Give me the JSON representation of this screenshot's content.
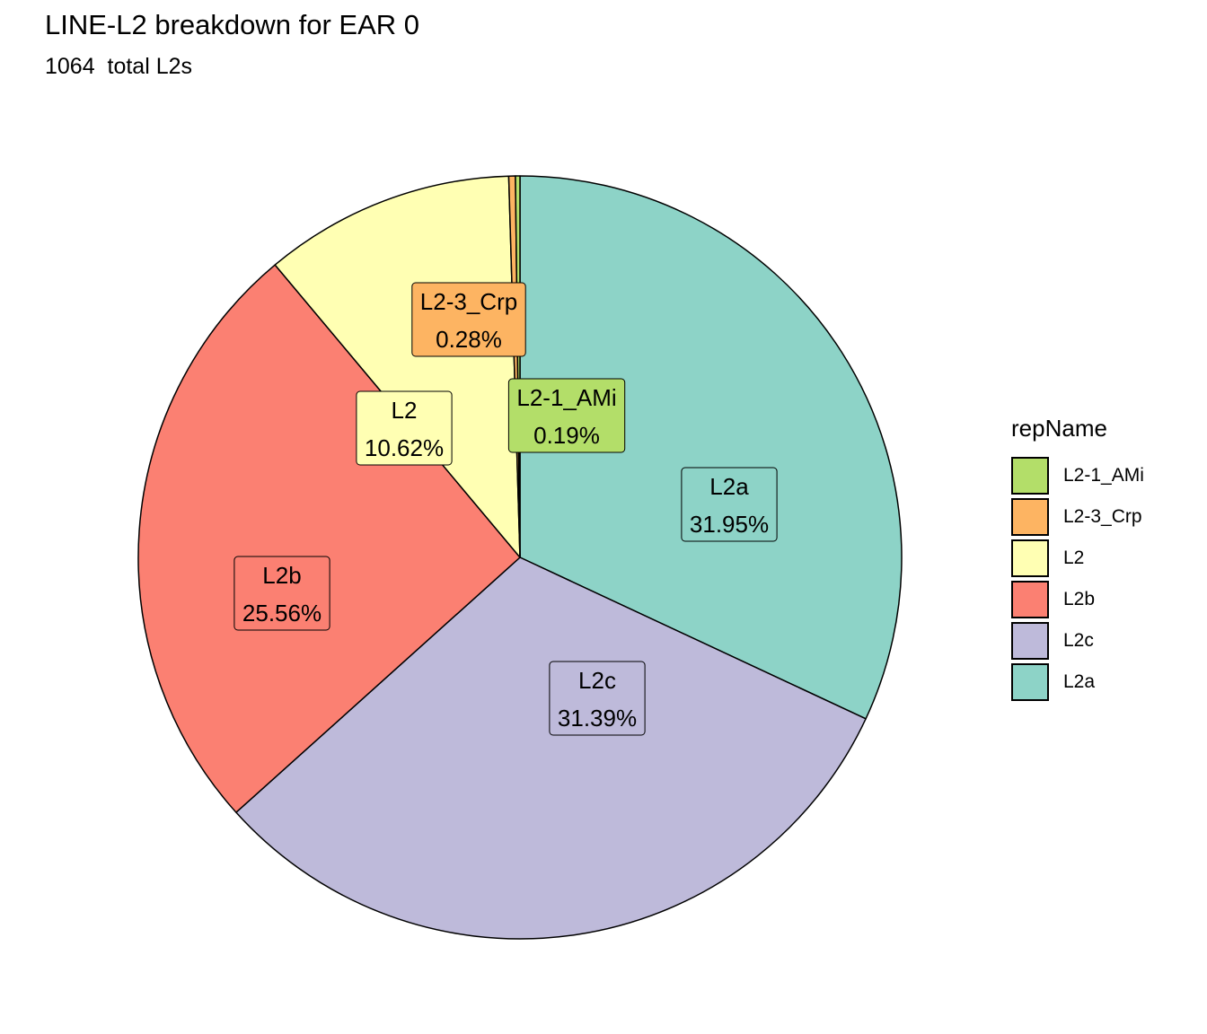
{
  "chart_data": {
    "type": "pie",
    "title": "LINE-L2 breakdown for EAR 0",
    "subtitle": "1064  total L2s",
    "legend_title": "repName",
    "legend_position": "right",
    "slices": [
      {
        "name": "L2a",
        "value": 31.95,
        "label": "31.95%",
        "color": "#8dd3c7"
      },
      {
        "name": "L2c",
        "value": 31.39,
        "label": "31.39%",
        "color": "#bebada"
      },
      {
        "name": "L2b",
        "value": 25.56,
        "label": "25.56%",
        "color": "#fb8072"
      },
      {
        "name": "L2",
        "value": 10.62,
        "label": "10.62%",
        "color": "#ffffb3"
      },
      {
        "name": "L2-3_Crp",
        "value": 0.28,
        "label": "0.28%",
        "color": "#fdb462"
      },
      {
        "name": "L2-1_AMi",
        "value": 0.19,
        "label": "0.19%",
        "color": "#b3de69"
      }
    ],
    "legend_order": [
      "L2-1_AMi",
      "L2-3_Crp",
      "L2",
      "L2b",
      "L2c",
      "L2a"
    ]
  }
}
